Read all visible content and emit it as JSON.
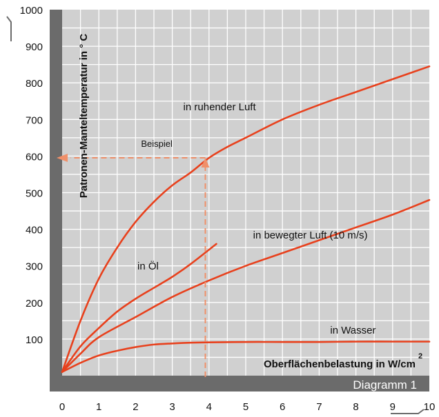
{
  "chart_data": {
    "type": "line",
    "title": "",
    "ylabel": "Patronen-Manteltemperatur  in ° C",
    "xlabel": "Oberflächenbelastung in W/cm",
    "xlabel_superscript": "2",
    "diagram_label": "Diagramm 1",
    "xlim": [
      0,
      10
    ],
    "ylim": [
      0,
      1000
    ],
    "x_ticks": [
      "0",
      "1",
      "2",
      "3",
      "4",
      "5",
      "6",
      "7",
      "8",
      "9",
      "10"
    ],
    "y_ticks": [
      "100",
      "200",
      "300",
      "400",
      "500",
      "600",
      "700",
      "800",
      "900",
      "1000"
    ],
    "grid": true,
    "colors": {
      "curve": "#e8401c",
      "example": "#f0906a",
      "grid": "#ffffff",
      "background": "#d0d0d0",
      "frame": "#6b6b6b"
    },
    "series": [
      {
        "name": "in ruhender Luft",
        "x": [
          0,
          0.5,
          1,
          1.5,
          2,
          2.5,
          3,
          3.5,
          4,
          4.5,
          5,
          6,
          7,
          8,
          9,
          10
        ],
        "y": [
          10,
          150,
          265,
          350,
          420,
          475,
          520,
          555,
          595,
          625,
          650,
          700,
          740,
          775,
          810,
          845
        ]
      },
      {
        "name": "in bewegter Luft (10 m/s)",
        "x": [
          0,
          0.5,
          1,
          2,
          3,
          4,
          5,
          6,
          7,
          8,
          9,
          10
        ],
        "y": [
          10,
          60,
          105,
          160,
          215,
          260,
          300,
          335,
          370,
          405,
          440,
          480
        ]
      },
      {
        "name": "in Öl",
        "x": [
          0,
          0.5,
          1,
          1.5,
          2,
          2.5,
          3,
          3.5,
          4.2
        ],
        "y": [
          10,
          80,
          130,
          175,
          210,
          240,
          270,
          305,
          360
        ]
      },
      {
        "name": "in Wasser",
        "x": [
          0,
          0.5,
          1,
          1.5,
          2,
          2.5,
          3,
          3.5,
          4,
          5,
          6,
          7,
          8,
          9,
          10
        ],
        "y": [
          10,
          35,
          55,
          68,
          78,
          85,
          88,
          90,
          91,
          92,
          92,
          92,
          93,
          93,
          93
        ]
      }
    ],
    "annotations": [
      {
        "text": "in ruhender Luft",
        "x": 3.3,
        "y": 725
      },
      {
        "text": "in bewegter Luft (10 m/s)",
        "x": 5.2,
        "y": 375
      },
      {
        "text": "in Öl",
        "x": 2.05,
        "y": 290
      },
      {
        "text": "in Wasser",
        "x": 7.3,
        "y": 115
      }
    ],
    "example": {
      "label": "Beispiel",
      "x": 3.9,
      "y": 595,
      "label_x": 2.15,
      "label_y": 625
    }
  }
}
